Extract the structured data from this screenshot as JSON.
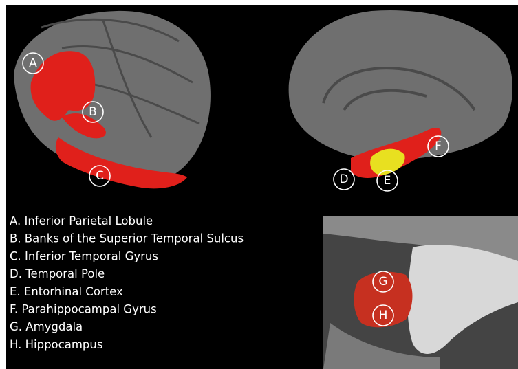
{
  "markers": [
    "A",
    "B",
    "C",
    "D",
    "E",
    "F",
    "G",
    "H"
  ],
  "legend": [
    "A. Inferior Parietal Lobule",
    "B. Banks of the Superior Temporal Sulcus",
    "C. Inferior Temporal Gyrus",
    "D. Temporal Pole",
    "E. Entorhinal Cortex",
    "F. Parahippocampal Gyrus",
    "G. Amygdala",
    "H. Hippocampus"
  ]
}
